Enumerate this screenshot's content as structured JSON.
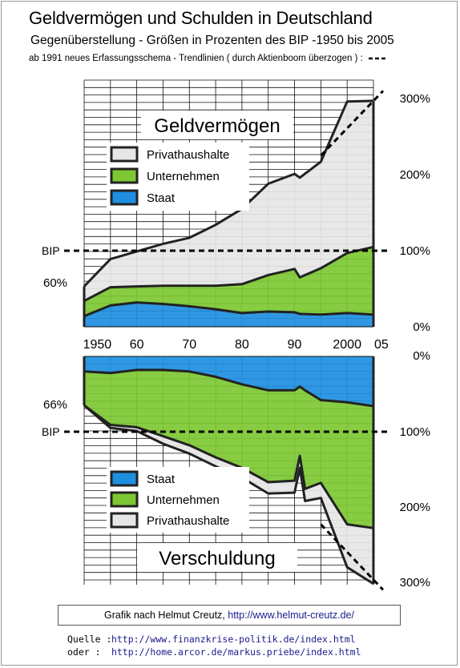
{
  "title": "Geldvermögen und Schulden in Deutschland",
  "subtitle": "Gegenüberstellung - Größen in Prozenten des BIP -1950 bis 2005",
  "note": "ab 1991 neues Erfassungsschema - Trendlinien ( durch Aktienboom überzogen ) :",
  "credit": {
    "text": "Grafik nach Helmut Creutz, ",
    "url": "http://www.helmut-creutz.de/"
  },
  "sources": [
    {
      "label": "Quelle :",
      "url": "http://www.finanzkrise-politik.de/index.html"
    },
    {
      "label": "oder  :",
      "url": "http://home.arcor.de/markus.priebe/index.html"
    }
  ],
  "colors": {
    "staat": "#1e8fe0",
    "unternehmen": "#7dc832",
    "privathaushalte": "#e6e6e6",
    "outline": "#222222"
  },
  "chart_data": [
    {
      "type": "area",
      "title": "Geldvermögen",
      "x": [
        1950,
        1955,
        1960,
        1965,
        1970,
        1975,
        1980,
        1985,
        1990,
        1991,
        1995,
        2000,
        2005
      ],
      "x_ticks": [
        "1950",
        "60",
        "70",
        "80",
        "90",
        "2000",
        "05"
      ],
      "y_ticks": [
        "0%",
        "100%",
        "200%",
        "300%"
      ],
      "ylim": [
        0,
        300
      ],
      "stacked": true,
      "series": [
        {
          "name": "Staat",
          "values": [
            14,
            28,
            32,
            30,
            27,
            23,
            18,
            20,
            19,
            17,
            16,
            18,
            16
          ]
        },
        {
          "name": "Unternehmen",
          "values": [
            20,
            24,
            21,
            24,
            27,
            31,
            38,
            48,
            57,
            48,
            61,
            79,
            89
          ]
        },
        {
          "name": "Privathaushalte",
          "values": [
            19,
            37,
            46,
            55,
            63,
            80,
            99,
            120,
            125,
            131,
            140,
            199,
            192
          ]
        }
      ],
      "reference_lines": [
        {
          "label": "BIP",
          "value": 100
        }
      ],
      "annotations": [
        "60%"
      ],
      "trend_line": {
        "x": [
          1995,
          2005
        ],
        "y": [
          225,
          310
        ]
      }
    },
    {
      "type": "area",
      "title": "Verschuldung",
      "x": [
        1950,
        1955,
        1960,
        1965,
        1970,
        1975,
        1980,
        1985,
        1990,
        1991,
        1992,
        1995,
        2000,
        2005
      ],
      "x_ticks": [
        "1950",
        "60",
        "70",
        "80",
        "90",
        "2000",
        "05"
      ],
      "y_ticks": [
        "0%",
        "100%",
        "200%",
        "300%"
      ],
      "ylim": [
        0,
        300
      ],
      "stacked": true,
      "inverted": true,
      "series": [
        {
          "name": "Staat",
          "values": [
            20,
            22,
            18,
            18,
            20,
            27,
            37,
            45,
            45,
            40,
            45,
            58,
            61,
            66
          ]
        },
        {
          "name": "Unternehmen",
          "values": [
            45,
            69,
            76,
            88,
            98,
            107,
            111,
            122,
            120,
            92,
            131,
            110,
            162,
            162
          ]
        },
        {
          "name": "Privathaushalte",
          "values": [
            0,
            4,
            5,
            10,
            11,
            12,
            13,
            15,
            16,
            16,
            16,
            20,
            57,
            74
          ]
        }
      ],
      "reference_lines": [
        {
          "label": "BIP",
          "value": 100
        }
      ],
      "annotations": [
        "66%"
      ],
      "trend_line": {
        "x": [
          1995,
          2005
        ],
        "y": [
          223,
          310
        ]
      }
    }
  ]
}
